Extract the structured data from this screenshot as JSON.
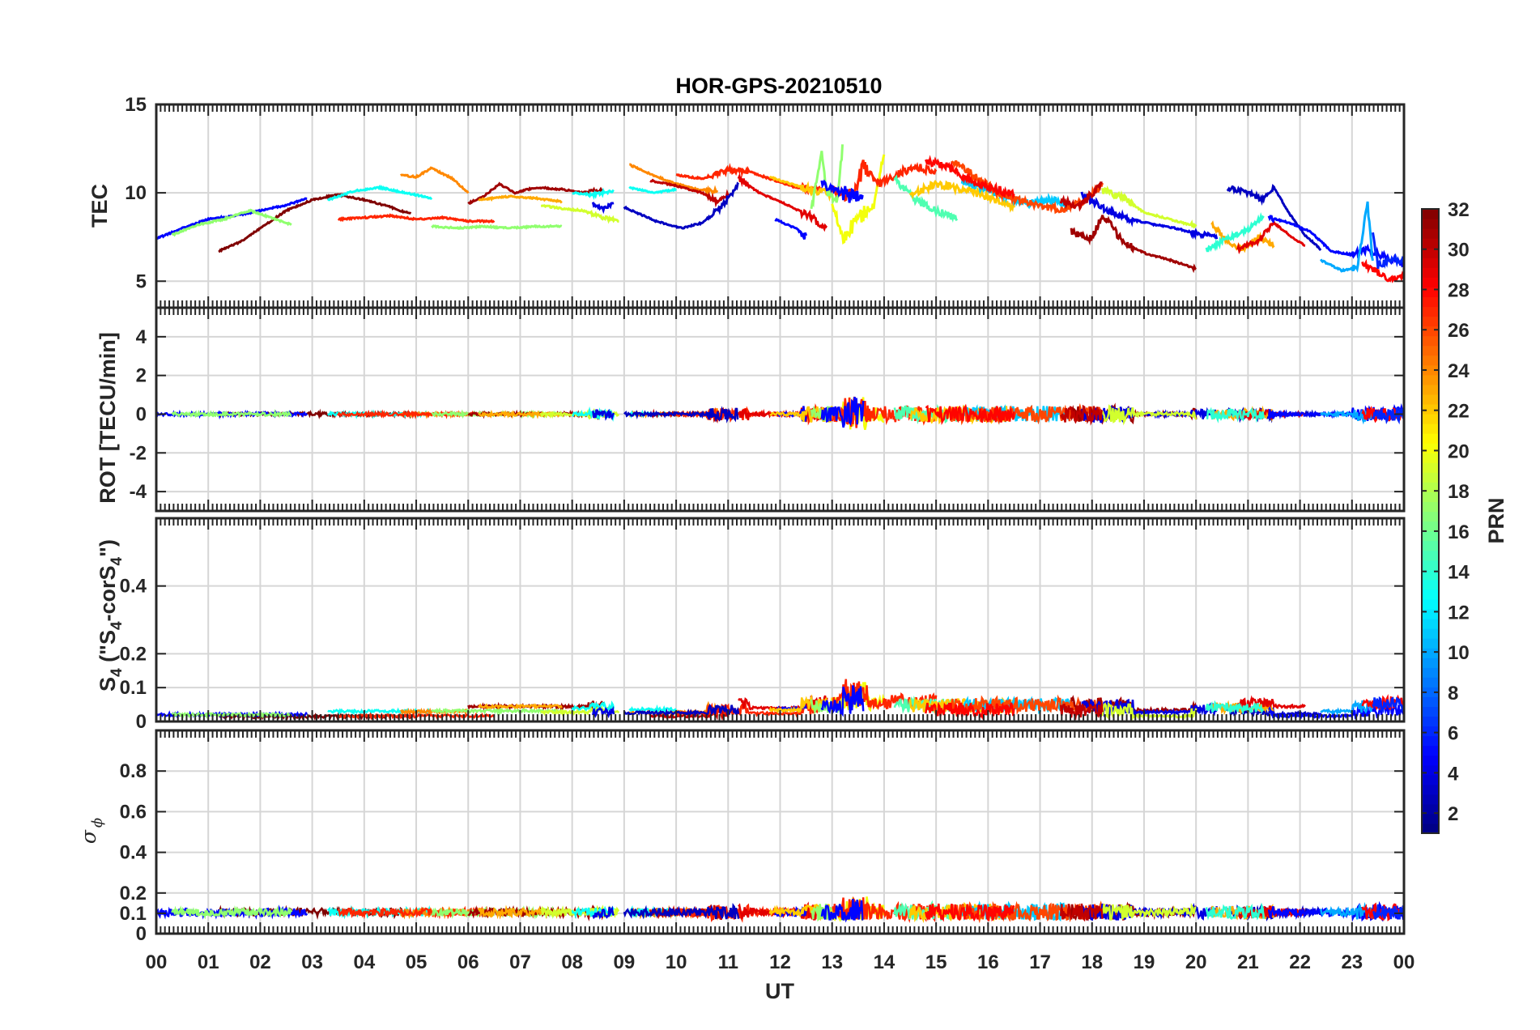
{
  "chart_data": {
    "type": "line",
    "title": "HOR-GPS-20210510",
    "xlabel": "UT",
    "x_tick_labels": [
      "00",
      "01",
      "02",
      "03",
      "04",
      "05",
      "06",
      "07",
      "08",
      "09",
      "10",
      "11",
      "12",
      "13",
      "14",
      "15",
      "16",
      "17",
      "18",
      "19",
      "20",
      "21",
      "22",
      "23",
      "00"
    ],
    "xlim_hours": [
      0,
      24
    ],
    "grid": true,
    "panels": [
      {
        "ylabel": "TEC",
        "ylim": [
          3.5,
          15
        ],
        "yticks": [
          5,
          10,
          15
        ],
        "ytick_labels": [
          "5",
          "10",
          "15"
        ]
      },
      {
        "ylabel": "ROT [TECU/min]",
        "ylim": [
          -5,
          5.5
        ],
        "yticks": [
          -4,
          -2,
          0,
          2,
          4
        ],
        "ytick_labels": [
          "-4",
          "-2",
          "0",
          "2",
          "4"
        ]
      },
      {
        "ylabel_main": "S",
        "ylabel_sub": "4",
        "ylabel_mid": " (\"S",
        "ylabel_mid2": "-corS",
        "ylabel_end": "\")",
        "ylim": [
          0,
          0.6
        ],
        "yticks": [
          0,
          0.1,
          0.2,
          0.4
        ],
        "ytick_labels": [
          "0",
          "0.1",
          "0.2",
          "0.4"
        ]
      },
      {
        "ylabel_sigma": "σ",
        "ylabel_phi": "ϕ",
        "ylim": [
          0,
          1
        ],
        "yticks": [
          0,
          0.1,
          0.2,
          0.4,
          0.6,
          0.8
        ],
        "ytick_labels": [
          "0",
          "0.1",
          "0.2",
          "0.4",
          "0.6",
          "0.8"
        ]
      }
    ],
    "colorbar": {
      "label": "PRN",
      "colormap": "jet",
      "range": [
        1,
        32
      ],
      "ticks": [
        2,
        4,
        6,
        8,
        10,
        12,
        14,
        16,
        18,
        20,
        22,
        24,
        26,
        28,
        30,
        32
      ],
      "tick_labels": [
        "2",
        "4",
        "6",
        "8",
        "10",
        "12",
        "14",
        "16",
        "18",
        "20",
        "22",
        "24",
        "26",
        "28",
        "30",
        "32"
      ]
    },
    "tec_tracks": [
      {
        "prn": 32,
        "pts": [
          [
            1.2,
            6.7
          ],
          [
            1.6,
            7.2
          ],
          [
            2.0,
            8.0
          ],
          [
            2.5,
            9.0
          ],
          [
            3.0,
            9.6
          ],
          [
            3.5,
            9.9
          ],
          [
            4.0,
            9.6
          ],
          [
            4.5,
            9.2
          ],
          [
            4.9,
            8.8
          ]
        ]
      },
      {
        "prn": 5,
        "pts": [
          [
            0.0,
            7.4
          ],
          [
            0.5,
            8.0
          ],
          [
            1.0,
            8.5
          ],
          [
            1.5,
            8.7
          ],
          [
            2.0,
            9.0
          ],
          [
            2.5,
            9.3
          ],
          [
            2.9,
            9.7
          ]
        ]
      },
      {
        "prn": 17,
        "pts": [
          [
            0.3,
            7.6
          ],
          [
            0.8,
            8.2
          ],
          [
            1.3,
            8.5
          ],
          [
            1.8,
            9.0
          ],
          [
            2.2,
            8.6
          ],
          [
            2.6,
            8.2
          ]
        ]
      },
      {
        "prn": 13,
        "pts": [
          [
            3.3,
            9.6
          ],
          [
            3.8,
            10.1
          ],
          [
            4.3,
            10.3
          ],
          [
            4.8,
            10.0
          ],
          [
            5.3,
            9.7
          ]
        ]
      },
      {
        "prn": 24,
        "pts": [
          [
            4.7,
            11.0
          ],
          [
            5.0,
            10.9
          ],
          [
            5.3,
            11.4
          ],
          [
            5.7,
            10.8
          ],
          [
            6.0,
            10.0
          ]
        ]
      },
      {
        "prn": 27,
        "pts": [
          [
            3.5,
            8.5
          ],
          [
            4.0,
            8.6
          ],
          [
            4.5,
            8.7
          ],
          [
            5.0,
            8.5
          ],
          [
            5.5,
            8.6
          ],
          [
            6.0,
            8.4
          ],
          [
            6.5,
            8.4
          ]
        ]
      },
      {
        "prn": 17,
        "pts": [
          [
            5.3,
            8.1
          ],
          [
            5.8,
            8.0
          ],
          [
            6.3,
            8.1
          ],
          [
            6.8,
            8.0
          ],
          [
            7.3,
            8.1
          ],
          [
            7.8,
            8.1
          ]
        ]
      },
      {
        "prn": 31,
        "pts": [
          [
            6.0,
            9.4
          ],
          [
            6.3,
            9.8
          ],
          [
            6.6,
            10.5
          ],
          [
            6.9,
            10.0
          ],
          [
            7.3,
            10.3
          ],
          [
            7.8,
            10.2
          ],
          [
            8.2,
            10.0
          ],
          [
            8.6,
            10.2
          ]
        ]
      },
      {
        "prn": 23,
        "pts": [
          [
            6.2,
            9.6
          ],
          [
            6.8,
            9.8
          ],
          [
            7.3,
            9.7
          ],
          [
            7.8,
            9.5
          ]
        ]
      },
      {
        "prn": 19,
        "pts": [
          [
            7.4,
            9.3
          ],
          [
            7.8,
            9.1
          ],
          [
            8.2,
            9.0
          ],
          [
            8.6,
            8.6
          ],
          [
            8.9,
            8.4
          ]
        ]
      },
      {
        "prn": 13,
        "pts": [
          [
            8.0,
            10.0
          ],
          [
            8.4,
            9.9
          ],
          [
            8.8,
            10.1
          ]
        ]
      },
      {
        "prn": 4,
        "pts": [
          [
            8.4,
            9.4
          ],
          [
            8.6,
            9.1
          ],
          [
            8.8,
            9.4
          ]
        ]
      },
      {
        "prn": 24,
        "pts": [
          [
            9.1,
            11.6
          ],
          [
            9.4,
            11.2
          ],
          [
            9.9,
            10.6
          ],
          [
            10.4,
            10.2
          ],
          [
            10.8,
            10.1
          ]
        ]
      },
      {
        "prn": 13,
        "pts": [
          [
            9.1,
            10.3
          ],
          [
            9.6,
            10.0
          ],
          [
            10.0,
            10.2
          ]
        ]
      },
      {
        "prn": 30,
        "pts": [
          [
            9.5,
            10.7
          ],
          [
            10.0,
            10.4
          ],
          [
            10.5,
            10.0
          ],
          [
            10.8,
            9.5
          ],
          [
            11.0,
            9.9
          ]
        ]
      },
      {
        "prn": 27,
        "pts": [
          [
            10.0,
            11.0
          ],
          [
            10.5,
            10.8
          ],
          [
            11.0,
            11.3
          ],
          [
            11.4,
            11.2
          ],
          [
            11.8,
            10.8
          ],
          [
            12.3,
            10.3
          ],
          [
            12.8,
            10.2
          ]
        ]
      },
      {
        "prn": 3,
        "pts": [
          [
            9.0,
            9.2
          ],
          [
            9.3,
            8.8
          ],
          [
            9.6,
            8.4
          ],
          [
            10.1,
            8.0
          ],
          [
            10.5,
            8.3
          ],
          [
            10.9,
            9.3
          ],
          [
            11.2,
            10.5
          ]
        ]
      },
      {
        "prn": 29,
        "pts": [
          [
            11.2,
            10.8
          ],
          [
            11.6,
            10.0
          ],
          [
            12.0,
            9.5
          ],
          [
            12.5,
            8.8
          ],
          [
            12.9,
            8.0
          ]
        ]
      },
      {
        "prn": 5,
        "pts": [
          [
            11.9,
            8.5
          ],
          [
            12.3,
            8.0
          ],
          [
            12.5,
            7.5
          ]
        ]
      },
      {
        "prn": 22,
        "pts": [
          [
            11.8,
            10.9
          ],
          [
            12.2,
            10.5
          ],
          [
            12.6,
            10.2
          ],
          [
            13.0,
            9.9
          ]
        ]
      },
      {
        "prn": 17,
        "pts": [
          [
            12.6,
            9.0
          ],
          [
            12.8,
            12.3
          ],
          [
            12.9,
            10.0
          ],
          [
            13.1,
            9.5
          ],
          [
            13.2,
            12.6
          ]
        ]
      },
      {
        "prn": 20,
        "pts": [
          [
            13.0,
            9.5
          ],
          [
            13.2,
            7.5
          ],
          [
            13.5,
            8.5
          ],
          [
            13.8,
            9.3
          ],
          [
            14.0,
            12.3
          ]
        ]
      },
      {
        "prn": 27,
        "pts": [
          [
            13.0,
            10.2
          ],
          [
            13.4,
            9.8
          ],
          [
            13.6,
            11.5
          ],
          [
            13.9,
            10.5
          ],
          [
            14.2,
            11.0
          ],
          [
            14.6,
            11.5
          ],
          [
            15.0,
            11.2
          ]
        ]
      },
      {
        "prn": 5,
        "pts": [
          [
            12.8,
            10.5
          ],
          [
            13.2,
            10.0
          ],
          [
            13.6,
            9.6
          ]
        ]
      },
      {
        "prn": 15,
        "pts": [
          [
            14.2,
            10.8
          ],
          [
            14.6,
            9.6
          ],
          [
            15.0,
            9.0
          ],
          [
            15.4,
            8.5
          ]
        ]
      },
      {
        "prn": 22,
        "pts": [
          [
            14.5,
            9.9
          ],
          [
            15.0,
            10.5
          ],
          [
            15.5,
            10.2
          ],
          [
            16.0,
            9.8
          ],
          [
            16.5,
            9.2
          ]
        ]
      },
      {
        "prn": 11,
        "pts": [
          [
            15.5,
            10.6
          ],
          [
            16.0,
            10.2
          ],
          [
            16.4,
            9.8
          ],
          [
            16.8,
            9.4
          ],
          [
            17.2,
            9.6
          ],
          [
            17.6,
            9.3
          ]
        ]
      },
      {
        "prn": 26,
        "pts": [
          [
            15.3,
            11.8
          ],
          [
            15.8,
            10.8
          ],
          [
            16.2,
            10.0
          ],
          [
            16.6,
            9.6
          ],
          [
            17.0,
            9.3
          ],
          [
            17.4,
            9.0
          ],
          [
            17.8,
            9.5
          ],
          [
            18.2,
            10.4
          ]
        ]
      },
      {
        "prn": 28,
        "pts": [
          [
            14.8,
            11.8
          ],
          [
            15.2,
            11.5
          ],
          [
            15.6,
            10.8
          ],
          [
            16.0,
            10.3
          ],
          [
            16.5,
            9.9
          ]
        ]
      },
      {
        "prn": 31,
        "pts": [
          [
            17.6,
            7.8
          ],
          [
            18.0,
            7.4
          ],
          [
            18.2,
            8.8
          ],
          [
            18.6,
            7.2
          ],
          [
            19.0,
            6.6
          ],
          [
            19.5,
            6.2
          ],
          [
            20.0,
            5.7
          ]
        ]
      },
      {
        "prn": 4,
        "pts": [
          [
            17.8,
            9.9
          ],
          [
            18.2,
            9.2
          ],
          [
            18.6,
            8.6
          ],
          [
            19.2,
            8.2
          ],
          [
            19.6,
            8.0
          ],
          [
            20.0,
            7.7
          ],
          [
            20.4,
            7.5
          ]
        ]
      },
      {
        "prn": 19,
        "pts": [
          [
            18.2,
            10.1
          ],
          [
            18.6,
            9.7
          ],
          [
            19.0,
            8.9
          ],
          [
            19.5,
            8.5
          ],
          [
            20.0,
            8.1
          ]
        ]
      },
      {
        "prn": 30,
        "pts": [
          [
            17.4,
            9.5
          ],
          [
            17.8,
            9.3
          ],
          [
            18.2,
            10.6
          ]
        ]
      },
      {
        "prn": 3,
        "pts": [
          [
            20.6,
            10.3
          ],
          [
            21.0,
            10.0
          ],
          [
            21.3,
            9.6
          ],
          [
            21.5,
            10.3
          ],
          [
            21.8,
            8.8
          ],
          [
            22.1,
            7.6
          ],
          [
            22.4,
            6.8
          ]
        ]
      },
      {
        "prn": 23,
        "pts": [
          [
            20.3,
            8.3
          ],
          [
            20.6,
            7.2
          ],
          [
            20.9,
            6.8
          ],
          [
            21.2,
            7.5
          ],
          [
            21.5,
            7.0
          ]
        ]
      },
      {
        "prn": 29,
        "pts": [
          [
            20.8,
            6.8
          ],
          [
            21.2,
            7.3
          ],
          [
            21.5,
            8.3
          ],
          [
            21.8,
            7.6
          ],
          [
            22.1,
            7.0
          ]
        ]
      },
      {
        "prn": 14,
        "pts": [
          [
            20.2,
            6.8
          ],
          [
            20.6,
            7.4
          ],
          [
            21.0,
            7.9
          ],
          [
            21.3,
            8.7
          ]
        ]
      },
      {
        "prn": 5,
        "pts": [
          [
            21.4,
            8.6
          ],
          [
            21.8,
            8.3
          ],
          [
            22.2,
            7.8
          ],
          [
            22.6,
            6.7
          ],
          [
            23.0,
            6.5
          ],
          [
            23.3,
            6.8
          ],
          [
            23.6,
            6.4
          ],
          [
            24.0,
            6.0
          ]
        ]
      },
      {
        "prn": 10,
        "pts": [
          [
            22.4,
            6.2
          ],
          [
            22.8,
            5.6
          ],
          [
            23.1,
            5.8
          ],
          [
            23.3,
            9.4
          ],
          [
            23.4,
            6.0
          ]
        ]
      },
      {
        "prn": 28,
        "pts": [
          [
            23.2,
            6.0
          ],
          [
            23.5,
            5.5
          ],
          [
            23.7,
            5.0
          ],
          [
            24.0,
            5.3
          ]
        ]
      },
      {
        "prn": 6,
        "pts": [
          [
            23.4,
            7.6
          ],
          [
            23.5,
            5.9
          ],
          [
            23.8,
            6.3
          ],
          [
            24.0,
            6.1
          ]
        ]
      }
    ]
  }
}
